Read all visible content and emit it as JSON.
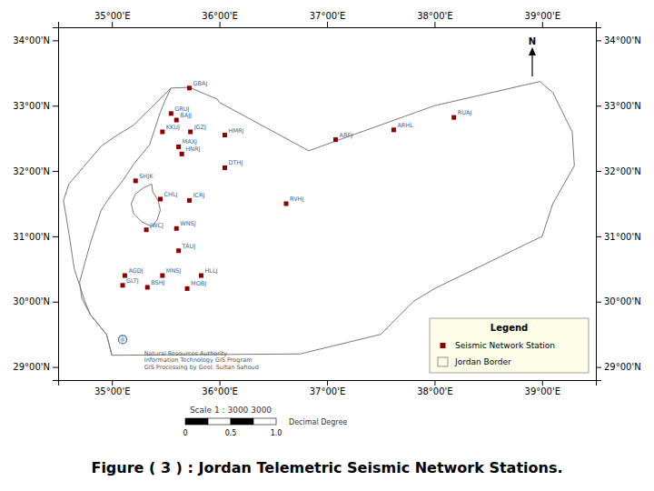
{
  "chart_data": {
    "type": "map",
    "title": "Figure ( 3 ) : Jordan Telemetric Seismic Network Stations.",
    "xlim": [
      34.5,
      39.5
    ],
    "ylim": [
      28.8,
      34.2
    ],
    "y2lim": [
      28.8,
      34.2
    ],
    "xticks": [
      {
        "value": 35.0,
        "label": "35°00'E"
      },
      {
        "value": 36.0,
        "label": "36°00'E"
      },
      {
        "value": 37.0,
        "label": "37°00'E"
      },
      {
        "value": 38.0,
        "label": "38°00'E"
      },
      {
        "value": 39.0,
        "label": "39°00'E"
      }
    ],
    "yticks": [
      {
        "value": 29.0,
        "label": "29°00'N"
      },
      {
        "value": 30.0,
        "label": "30°00'N"
      },
      {
        "value": 31.0,
        "label": "31°00'N"
      },
      {
        "value": 32.0,
        "label": "32°00'N"
      },
      {
        "value": 33.0,
        "label": "33°00'N"
      },
      {
        "value": 34.0,
        "label": "34°00'N"
      }
    ],
    "y2ticks": [
      {
        "value": 29.0,
        "label": "29°00'N"
      },
      {
        "value": 30.0,
        "label": "30°00'N"
      },
      {
        "value": 31.0,
        "label": "31°00'N"
      },
      {
        "value": 32.0,
        "label": "32°00'N"
      },
      {
        "value": 33.0,
        "label": "33°00'N"
      },
      {
        "value": 34.0,
        "label": "34°00'N"
      }
    ],
    "legend": "lower right",
    "legend_title": "Legend",
    "series": [
      {
        "name": "Seismic Network Station",
        "type": "scatter",
        "marker": "square",
        "color": "#8B0000",
        "x": [
          35.72,
          35.55,
          35.6,
          35.47,
          35.73,
          36.05,
          37.08,
          38.18,
          37.62,
          35.62,
          35.65,
          36.05,
          35.22,
          35.45,
          35.72,
          36.62,
          35.32,
          35.6,
          35.62,
          35.12,
          35.47,
          35.83,
          35.1,
          35.33,
          35.7
        ],
        "values": [
          33.27,
          32.88,
          32.78,
          32.6,
          32.6,
          32.55,
          32.48,
          32.82,
          32.63,
          32.37,
          32.26,
          32.05,
          31.85,
          31.57,
          31.55,
          31.5,
          31.1,
          31.12,
          30.78,
          30.4,
          30.4,
          30.4,
          30.25,
          30.22,
          30.2
        ],
        "labels": [
          "GBAJ",
          "GRUJ",
          "BAJJ",
          "KKUJ",
          "JGZJ",
          "HMRJ",
          "ARFJ",
          "RUAJ",
          "ARHL",
          "MAXJ",
          "HNRJ",
          "DTHJ",
          "SHJK",
          "CHLJ",
          "ICRJ",
          "RVHJ",
          "JWCJ",
          "WNSJ",
          "TAUJ",
          "AGDJ",
          "MNSJ",
          "HLLJ",
          "GLTJ",
          "BSHJ",
          "MOBJ"
        ]
      },
      {
        "name": "Jordan Border",
        "type": "line",
        "color": "#777777",
        "x": [
          35.55,
          35.72,
          35.98,
          36.0,
          36.83,
          38.0,
          38.98,
          39.1,
          39.28,
          39.3,
          39.1,
          39.0,
          38.0,
          37.8,
          37.5,
          36.75,
          35.0,
          34.95,
          34.8,
          34.75,
          34.65,
          34.6,
          34.55,
          34.6,
          34.9,
          35.05,
          35.2,
          35.55
        ],
        "values": [
          33.27,
          33.28,
          33.1,
          33.05,
          32.31,
          33.0,
          33.37,
          33.2,
          32.6,
          32.08,
          31.5,
          31.0,
          30.2,
          30.0,
          29.5,
          29.2,
          29.18,
          29.5,
          29.8,
          30.0,
          30.5,
          31.05,
          31.55,
          31.8,
          32.38,
          32.55,
          32.7,
          33.27
        ]
      },
      {
        "type": "line",
        "color": "#777777",
        "x": [
          35.55,
          35.5,
          35.45,
          35.4,
          35.35,
          35.2,
          35.1,
          34.98,
          34.9,
          34.85,
          34.8,
          34.75,
          34.7,
          34.72,
          34.8,
          34.95,
          35.0
        ],
        "values": [
          33.27,
          33.1,
          32.9,
          32.65,
          32.4,
          32.1,
          31.85,
          31.6,
          31.4,
          31.15,
          30.9,
          30.6,
          30.3,
          30.05,
          29.8,
          29.5,
          29.18
        ]
      },
      {
        "type": "line",
        "color": "#777777",
        "x": [
          35.37,
          35.3,
          35.22,
          35.18,
          35.2,
          35.28,
          35.37,
          35.42,
          35.45,
          35.43,
          35.38,
          35.37
        ],
        "values": [
          31.8,
          31.75,
          31.65,
          31.5,
          31.35,
          31.22,
          31.15,
          31.25,
          31.4,
          31.55,
          31.68,
          31.8
        ]
      },
      {
        "type": "scatter",
        "marker": "circle",
        "color": "#336699",
        "x": [
          35.1
        ],
        "values": [
          29.42
        ]
      }
    ],
    "annotations": [
      {
        "text": "Natural Resources Authority\nInformation Technology GIS Program\nGIS Processing by Geol. Sultan Sahoud",
        "x": 35.3,
        "y": 29.25
      },
      {
        "text": "N"
      }
    ],
    "scale_bar": {
      "text": "Scale 1 : 3000 3000",
      "ticks": [
        0,
        0.5,
        {
          "value": 1.0,
          "label": "1.0"
        }
      ],
      "label": "Decimal Degree"
    }
  }
}
